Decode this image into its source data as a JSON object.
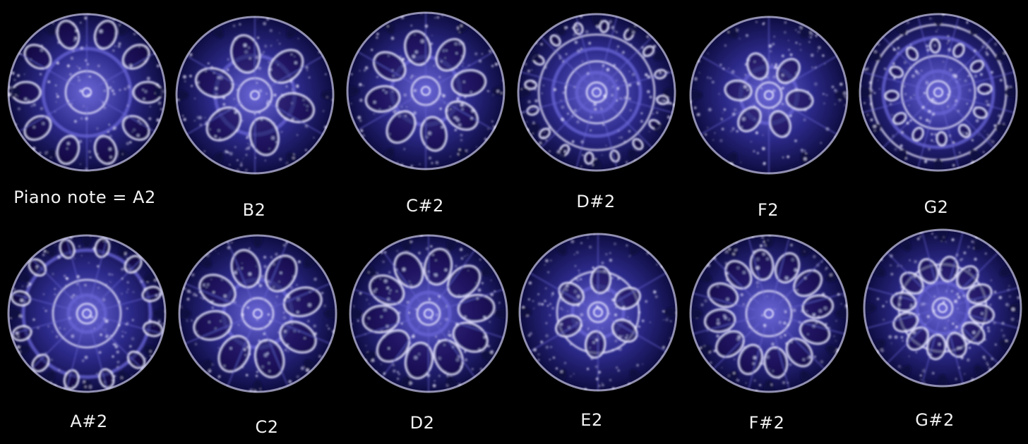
{
  "colors": {
    "background": "#000000",
    "disc_base": "#2c2a8a",
    "disc_dark": "#0e0c40",
    "glow": "#e8e6ff",
    "mid": "#6a66d6",
    "label_text": "#f2f2f2"
  },
  "rows": [
    {
      "cymaglyphs": [
        {
          "label": "Piano note = A2",
          "pattern": "A2"
        },
        {
          "label": "B2",
          "pattern": "B2"
        },
        {
          "label": "C#2",
          "pattern": "C#2"
        },
        {
          "label": "D#2",
          "pattern": "D#2"
        },
        {
          "label": "F2",
          "pattern": "F2"
        },
        {
          "label": "G2",
          "pattern": "G2"
        }
      ]
    },
    {
      "cymaglyphs": [
        {
          "label": "A#2",
          "pattern": "A#2"
        },
        {
          "label": "C2",
          "pattern": "C2"
        },
        {
          "label": "D2",
          "pattern": "D2"
        },
        {
          "label": "E2",
          "pattern": "E2"
        },
        {
          "label": "F#2",
          "pattern": "F#2"
        },
        {
          "label": "G#2",
          "pattern": "G#2"
        }
      ]
    }
  ]
}
